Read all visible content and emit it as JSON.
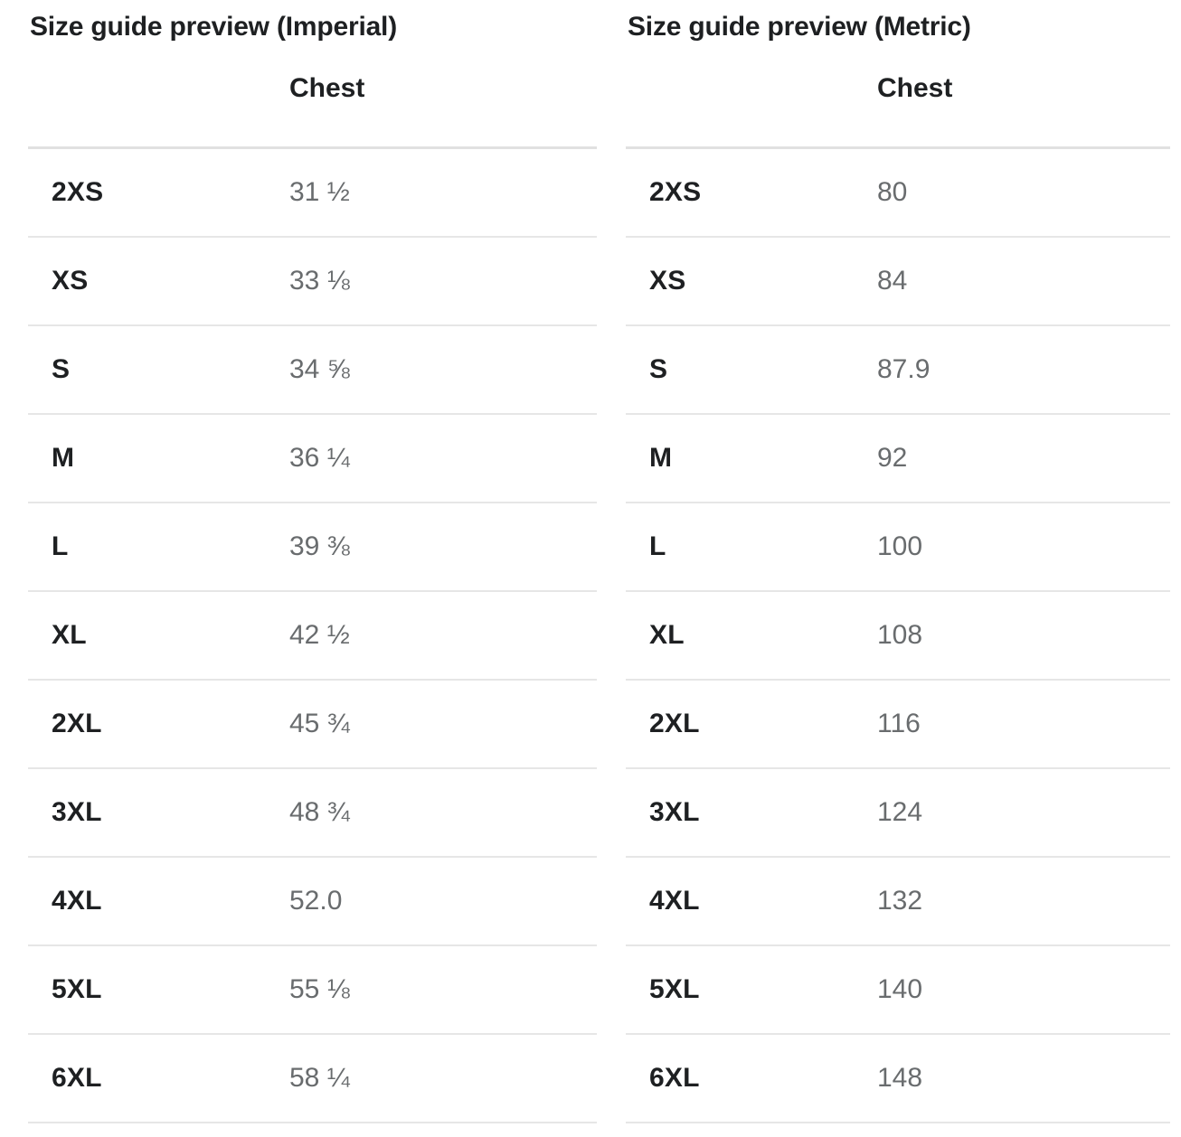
{
  "tables": {
    "imperial": {
      "title": "Size guide preview (Imperial)",
      "columns": {
        "measurement": "Chest"
      },
      "rows": [
        {
          "size": "2XS",
          "chest": "31 ½"
        },
        {
          "size": "XS",
          "chest": "33 ⅛"
        },
        {
          "size": "S",
          "chest": "34 ⅝"
        },
        {
          "size": "M",
          "chest": "36 ¼"
        },
        {
          "size": "L",
          "chest": "39 ⅜"
        },
        {
          "size": "XL",
          "chest": "42 ½"
        },
        {
          "size": "2XL",
          "chest": "45 ¾"
        },
        {
          "size": "3XL",
          "chest": "48 ¾"
        },
        {
          "size": "4XL",
          "chest": "52.0"
        },
        {
          "size": "5XL",
          "chest": "55 ⅛"
        },
        {
          "size": "6XL",
          "chest": "58 ¼"
        }
      ]
    },
    "metric": {
      "title": "Size guide preview (Metric)",
      "columns": {
        "measurement": "Chest"
      },
      "rows": [
        {
          "size": "2XS",
          "chest": "80"
        },
        {
          "size": "XS",
          "chest": "84"
        },
        {
          "size": "S",
          "chest": "87.9"
        },
        {
          "size": "M",
          "chest": "92"
        },
        {
          "size": "L",
          "chest": "100"
        },
        {
          "size": "XL",
          "chest": "108"
        },
        {
          "size": "2XL",
          "chest": "116"
        },
        {
          "size": "3XL",
          "chest": "124"
        },
        {
          "size": "4XL",
          "chest": "132"
        },
        {
          "size": "5XL",
          "chest": "140"
        },
        {
          "size": "6XL",
          "chest": "148"
        }
      ]
    }
  },
  "colors": {
    "heading_text": "#1e2022",
    "value_text": "#696c6e",
    "divider": "#e6e6e6",
    "header_divider": "#e1e1e1",
    "background": "#ffffff"
  }
}
